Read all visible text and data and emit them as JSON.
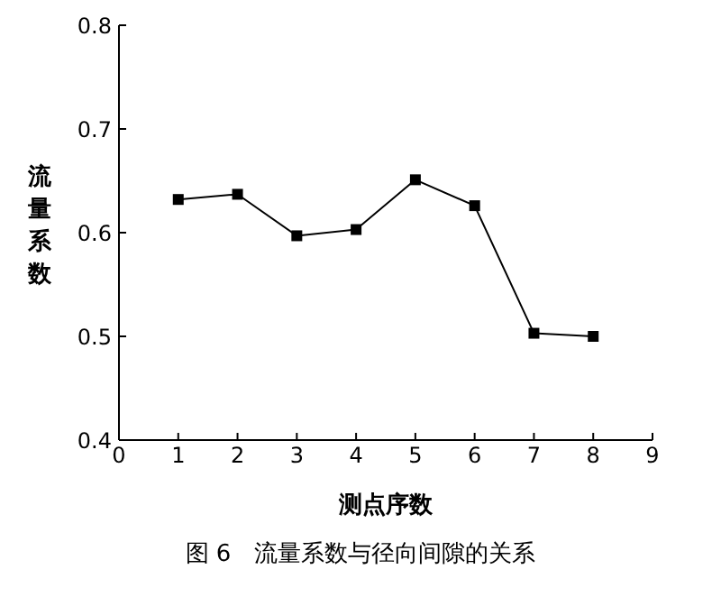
{
  "chart_data": {
    "type": "line",
    "xlabel": "测点序数",
    "ylabel": "流量系数",
    "x": [
      1,
      2,
      3,
      4,
      5,
      6,
      7,
      8
    ],
    "series": [
      {
        "color": "#000000",
        "values": [
          0.632,
          0.637,
          0.597,
          0.603,
          0.651,
          0.626,
          0.503,
          0.5
        ]
      }
    ],
    "xlim": [
      0,
      9
    ],
    "xticks": [
      0,
      1,
      2,
      3,
      4,
      5,
      6,
      7,
      8,
      9
    ],
    "ylim": [
      0.4,
      0.8
    ],
    "yticks": [
      0.4,
      0.5,
      0.6,
      0.7,
      0.8
    ],
    "marker": "square",
    "line_style": "solid",
    "grid": false,
    "annotations": [
      "图 6　流量系数与径向间隙的关系"
    ]
  }
}
